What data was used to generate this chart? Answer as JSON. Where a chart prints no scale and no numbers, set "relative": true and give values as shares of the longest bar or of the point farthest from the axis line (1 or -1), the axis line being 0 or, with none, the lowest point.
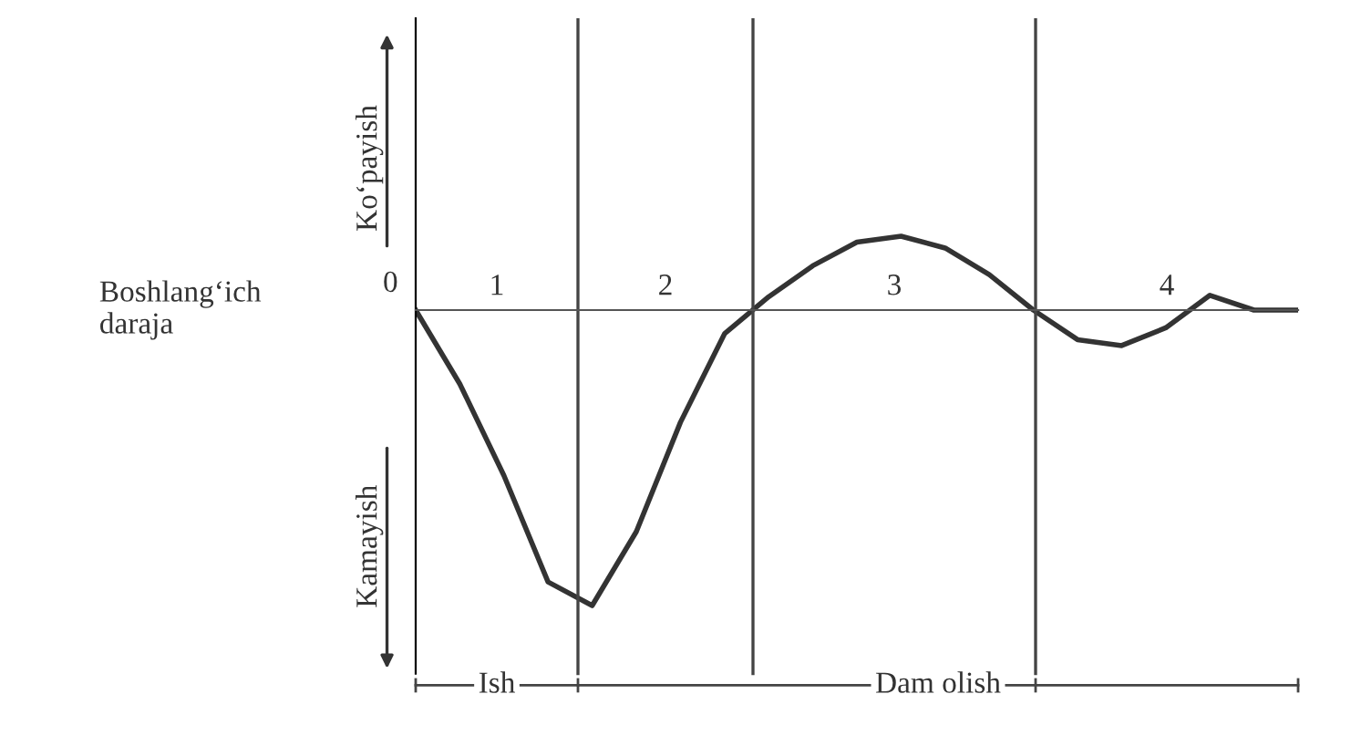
{
  "chart_data": {
    "type": "line",
    "relative": true,
    "categories": [
      null,
      null,
      null,
      null,
      null,
      null,
      null,
      null,
      null,
      null,
      null,
      null,
      null,
      null,
      null,
      null,
      null,
      null,
      null,
      null,
      null
    ],
    "series": [
      {
        "color": "#333333",
        "values": [
          0,
          -0.25,
          -0.56,
          -0.92,
          -1,
          -0.75,
          -0.38,
          -0.08,
          0.045,
          0.15,
          0.23,
          0.25,
          0.21,
          0.12,
          0,
          -0.1,
          -0.12,
          -0.06,
          0.05,
          0,
          0
        ]
      }
    ],
    "annotations": [
      "0",
      "Boshlang‘ich\ndaraja",
      "Ko‘payish",
      "Kamayish",
      "1",
      "2",
      "3",
      "4",
      "Ish",
      "Dam olish"
    ],
    "marker": "none",
    "line_style": "solid"
  }
}
